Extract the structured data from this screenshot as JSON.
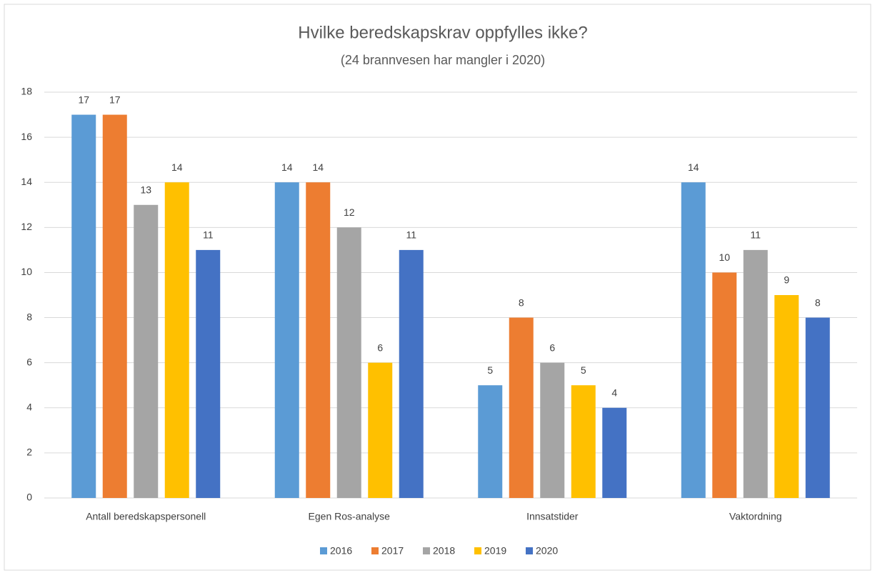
{
  "chart_data": {
    "type": "bar",
    "title": "Hvilke beredskapskrav oppfylles ikke?",
    "subtitle": "(24 brannvesen har mangler i 2020)",
    "categories": [
      "Antall beredskapspersonell",
      "Egen Ros-analyse",
      "Innsatstider",
      "Vaktordning"
    ],
    "series": [
      {
        "name": "2016",
        "color": "#5b9bd5",
        "values": [
          17,
          14,
          5,
          14
        ]
      },
      {
        "name": "2017",
        "color": "#ed7d31",
        "values": [
          17,
          14,
          8,
          10
        ]
      },
      {
        "name": "2018",
        "color": "#a5a5a5",
        "values": [
          13,
          12,
          6,
          11
        ]
      },
      {
        "name": "2019",
        "color": "#ffc000",
        "values": [
          14,
          6,
          5,
          9
        ]
      },
      {
        "name": "2020",
        "color": "#4472c4",
        "values": [
          11,
          11,
          4,
          8
        ]
      }
    ],
    "ylim": [
      0,
      18
    ],
    "yticks": [
      0,
      2,
      4,
      6,
      8,
      10,
      12,
      14,
      16,
      18
    ],
    "grid": true,
    "legend": "bottom"
  }
}
